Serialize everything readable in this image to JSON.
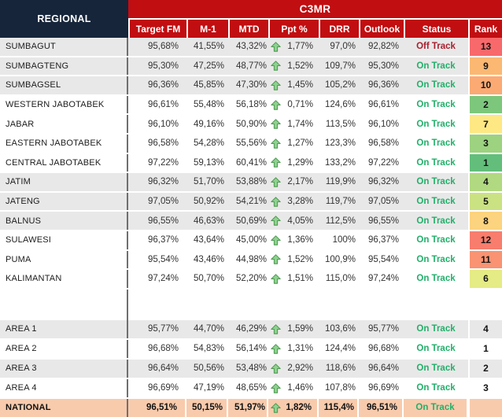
{
  "header": {
    "regional_label": "REGIONAL",
    "group_label": "C3MR",
    "columns": [
      "Target FM",
      "M-1",
      "MTD",
      "Ppt %",
      "DRR",
      "Outlook",
      "Status",
      "Rank"
    ]
  },
  "icons": {
    "trend": "up-arrow"
  },
  "colors": {
    "header_red": "#c10e11",
    "header_navy": "#16253a",
    "stripe": "#e9e8e8",
    "national_bg": "#f8cbad",
    "divider": "#6f6f6f",
    "status_on": "#21b06a",
    "status_off": "#a81f2e",
    "arrow_fill": "#8fd191",
    "arrow_stroke": "#4d9b50"
  },
  "table": {
    "regional_rows": [
      {
        "name": "SUMBAGUT",
        "target_fm": "95,68%",
        "m1": "41,55%",
        "mtd": "43,32%",
        "trend": "up",
        "ppt": "1,77%",
        "drr": "97,0%",
        "outlook": "92,82%",
        "status": "Off Track",
        "rank": "13",
        "rank_color": "#f8696b",
        "shaded": true
      },
      {
        "name": "SUMBAGTENG",
        "target_fm": "95,30%",
        "m1": "47,25%",
        "mtd": "48,77%",
        "trend": "up",
        "ppt": "1,52%",
        "drr": "109,7%",
        "outlook": "95,30%",
        "status": "On Track",
        "rank": "9",
        "rank_color": "#fbb872",
        "shaded": true
      },
      {
        "name": "SUMBAGSEL",
        "target_fm": "96,36%",
        "m1": "45,85%",
        "mtd": "47,30%",
        "trend": "up",
        "ppt": "1,45%",
        "drr": "105,2%",
        "outlook": "96,36%",
        "status": "On Track",
        "rank": "10",
        "rank_color": "#fbaa73",
        "shaded": true
      },
      {
        "name": "WESTERN JABOTABEK",
        "target_fm": "96,61%",
        "m1": "55,48%",
        "mtd": "56,18%",
        "trend": "up",
        "ppt": "0,71%",
        "drr": "124,6%",
        "outlook": "96,61%",
        "status": "On Track",
        "rank": "2",
        "rank_color": "#7dc77d",
        "shaded": false
      },
      {
        "name": "JABAR",
        "target_fm": "96,10%",
        "m1": "49,16%",
        "mtd": "50,90%",
        "trend": "up",
        "ppt": "1,74%",
        "drr": "113,5%",
        "outlook": "96,10%",
        "status": "On Track",
        "rank": "7",
        "rank_color": "#fde884",
        "shaded": false
      },
      {
        "name": "EASTERN JABOTABEK",
        "target_fm": "96,58%",
        "m1": "54,28%",
        "mtd": "55,56%",
        "trend": "up",
        "ppt": "1,27%",
        "drr": "123,3%",
        "outlook": "96,58%",
        "status": "On Track",
        "rank": "3",
        "rank_color": "#9cd280",
        "shaded": false
      },
      {
        "name": "CENTRAL JABOTABEK",
        "target_fm": "97,22%",
        "m1": "59,13%",
        "mtd": "60,41%",
        "trend": "up",
        "ppt": "1,29%",
        "drr": "133,2%",
        "outlook": "97,22%",
        "status": "On Track",
        "rank": "1",
        "rank_color": "#63be7b",
        "shaded": false
      },
      {
        "name": "JATIM",
        "target_fm": "96,32%",
        "m1": "51,70%",
        "mtd": "53,88%",
        "trend": "up",
        "ppt": "2,17%",
        "drr": "119,9%",
        "outlook": "96,32%",
        "status": "On Track",
        "rank": "4",
        "rank_color": "#b1d981",
        "shaded": true
      },
      {
        "name": "JATENG",
        "target_fm": "97,05%",
        "m1": "50,92%",
        "mtd": "54,21%",
        "trend": "up",
        "ppt": "3,28%",
        "drr": "119,7%",
        "outlook": "97,05%",
        "status": "On Track",
        "rank": "5",
        "rank_color": "#cbe283",
        "shaded": true
      },
      {
        "name": "BALNUS",
        "target_fm": "96,55%",
        "m1": "46,63%",
        "mtd": "50,69%",
        "trend": "up",
        "ppt": "4,05%",
        "drr": "112,5%",
        "outlook": "96,55%",
        "status": "On Track",
        "rank": "8",
        "rank_color": "#fcd37e",
        "shaded": true
      },
      {
        "name": "SULAWESI",
        "target_fm": "96,37%",
        "m1": "43,64%",
        "mtd": "45,00%",
        "trend": "up",
        "ppt": "1,36%",
        "drr": "100%",
        "outlook": "96,37%",
        "status": "On Track",
        "rank": "12",
        "rank_color": "#f87d6c",
        "shaded": false
      },
      {
        "name": "PUMA",
        "target_fm": "95,54%",
        "m1": "43,46%",
        "mtd": "44,98%",
        "trend": "up",
        "ppt": "1,52%",
        "drr": "100,9%",
        "outlook": "95,54%",
        "status": "On Track",
        "rank": "11",
        "rank_color": "#f99371",
        "shaded": false
      },
      {
        "name": "KALIMANTAN",
        "target_fm": "97,24%",
        "m1": "50,70%",
        "mtd": "52,20%",
        "trend": "up",
        "ppt": "1,51%",
        "drr": "115,0%",
        "outlook": "97,24%",
        "status": "On Track",
        "rank": "6",
        "rank_color": "#e5eb85",
        "shaded": false
      }
    ],
    "area_rows": [
      {
        "name": "AREA 1",
        "target_fm": "95,77%",
        "m1": "44,70%",
        "mtd": "46,29%",
        "trend": "up",
        "ppt": "1,59%",
        "drr": "103,6%",
        "outlook": "95,77%",
        "status": "On Track",
        "rank": "4",
        "rank_color": null,
        "shaded": true
      },
      {
        "name": "AREA 2",
        "target_fm": "96,68%",
        "m1": "54,83%",
        "mtd": "56,14%",
        "trend": "up",
        "ppt": "1,31%",
        "drr": "124,4%",
        "outlook": "96,68%",
        "status": "On Track",
        "rank": "1",
        "rank_color": null,
        "shaded": false
      },
      {
        "name": "AREA 3",
        "target_fm": "96,64%",
        "m1": "50,56%",
        "mtd": "53,48%",
        "trend": "up",
        "ppt": "2,92%",
        "drr": "118,6%",
        "outlook": "96,64%",
        "status": "On Track",
        "rank": "2",
        "rank_color": null,
        "shaded": true
      },
      {
        "name": "AREA 4",
        "target_fm": "96,69%",
        "m1": "47,19%",
        "mtd": "48,65%",
        "trend": "up",
        "ppt": "1,46%",
        "drr": "107,8%",
        "outlook": "96,69%",
        "status": "On Track",
        "rank": "3",
        "rank_color": null,
        "shaded": false
      }
    ],
    "national_row": {
      "name": "NATIONAL",
      "target_fm": "96,51%",
      "m1": "50,15%",
      "mtd": "51,97%",
      "trend": "up",
      "ppt": "1,82%",
      "drr": "115,4%",
      "outlook": "96,51%",
      "status": "On Track",
      "rank": "",
      "rank_color": null,
      "shaded": false
    }
  },
  "chart_data": {
    "type": "table",
    "title": "C3MR",
    "columns": [
      "Regional",
      "Target FM",
      "M-1",
      "MTD",
      "Ppt %",
      "DRR",
      "Outlook",
      "Status",
      "Rank"
    ],
    "rows": [
      [
        "SUMBAGUT",
        "95,68%",
        "41,55%",
        "43,32%",
        "1,77%",
        "97,0%",
        "92,82%",
        "Off Track",
        "13"
      ],
      [
        "SUMBAGTENG",
        "95,30%",
        "47,25%",
        "48,77%",
        "1,52%",
        "109,7%",
        "95,30%",
        "On Track",
        "9"
      ],
      [
        "SUMBAGSEL",
        "96,36%",
        "45,85%",
        "47,30%",
        "1,45%",
        "105,2%",
        "96,36%",
        "On Track",
        "10"
      ],
      [
        "WESTERN JABOTABEK",
        "96,61%",
        "55,48%",
        "56,18%",
        "0,71%",
        "124,6%",
        "96,61%",
        "On Track",
        "2"
      ],
      [
        "JABAR",
        "96,10%",
        "49,16%",
        "50,90%",
        "1,74%",
        "113,5%",
        "96,10%",
        "On Track",
        "7"
      ],
      [
        "EASTERN JABOTABEK",
        "96,58%",
        "54,28%",
        "55,56%",
        "1,27%",
        "123,3%",
        "96,58%",
        "On Track",
        "3"
      ],
      [
        "CENTRAL JABOTABEK",
        "97,22%",
        "59,13%",
        "60,41%",
        "1,29%",
        "133,2%",
        "97,22%",
        "On Track",
        "1"
      ],
      [
        "JATIM",
        "96,32%",
        "51,70%",
        "53,88%",
        "2,17%",
        "119,9%",
        "96,32%",
        "On Track",
        "4"
      ],
      [
        "JATENG",
        "97,05%",
        "50,92%",
        "54,21%",
        "3,28%",
        "119,7%",
        "97,05%",
        "On Track",
        "5"
      ],
      [
        "BALNUS",
        "96,55%",
        "46,63%",
        "50,69%",
        "4,05%",
        "112,5%",
        "96,55%",
        "On Track",
        "8"
      ],
      [
        "SULAWESI",
        "96,37%",
        "43,64%",
        "45,00%",
        "1,36%",
        "100%",
        "96,37%",
        "On Track",
        "12"
      ],
      [
        "PUMA",
        "95,54%",
        "43,46%",
        "44,98%",
        "1,52%",
        "100,9%",
        "95,54%",
        "On Track",
        "11"
      ],
      [
        "KALIMANTAN",
        "97,24%",
        "50,70%",
        "52,20%",
        "1,51%",
        "115,0%",
        "97,24%",
        "On Track",
        "6"
      ],
      [
        "AREA 1",
        "95,77%",
        "44,70%",
        "46,29%",
        "1,59%",
        "103,6%",
        "95,77%",
        "On Track",
        "4"
      ],
      [
        "AREA 2",
        "96,68%",
        "54,83%",
        "56,14%",
        "1,31%",
        "124,4%",
        "96,68%",
        "On Track",
        "1"
      ],
      [
        "AREA 3",
        "96,64%",
        "50,56%",
        "53,48%",
        "2,92%",
        "118,6%",
        "96,64%",
        "On Track",
        "2"
      ],
      [
        "AREA 4",
        "96,69%",
        "47,19%",
        "48,65%",
        "1,46%",
        "107,8%",
        "96,69%",
        "On Track",
        "3"
      ],
      [
        "NATIONAL",
        "96,51%",
        "50,15%",
        "51,97%",
        "1,82%",
        "115,4%",
        "96,51%",
        "On Track",
        ""
      ]
    ]
  }
}
